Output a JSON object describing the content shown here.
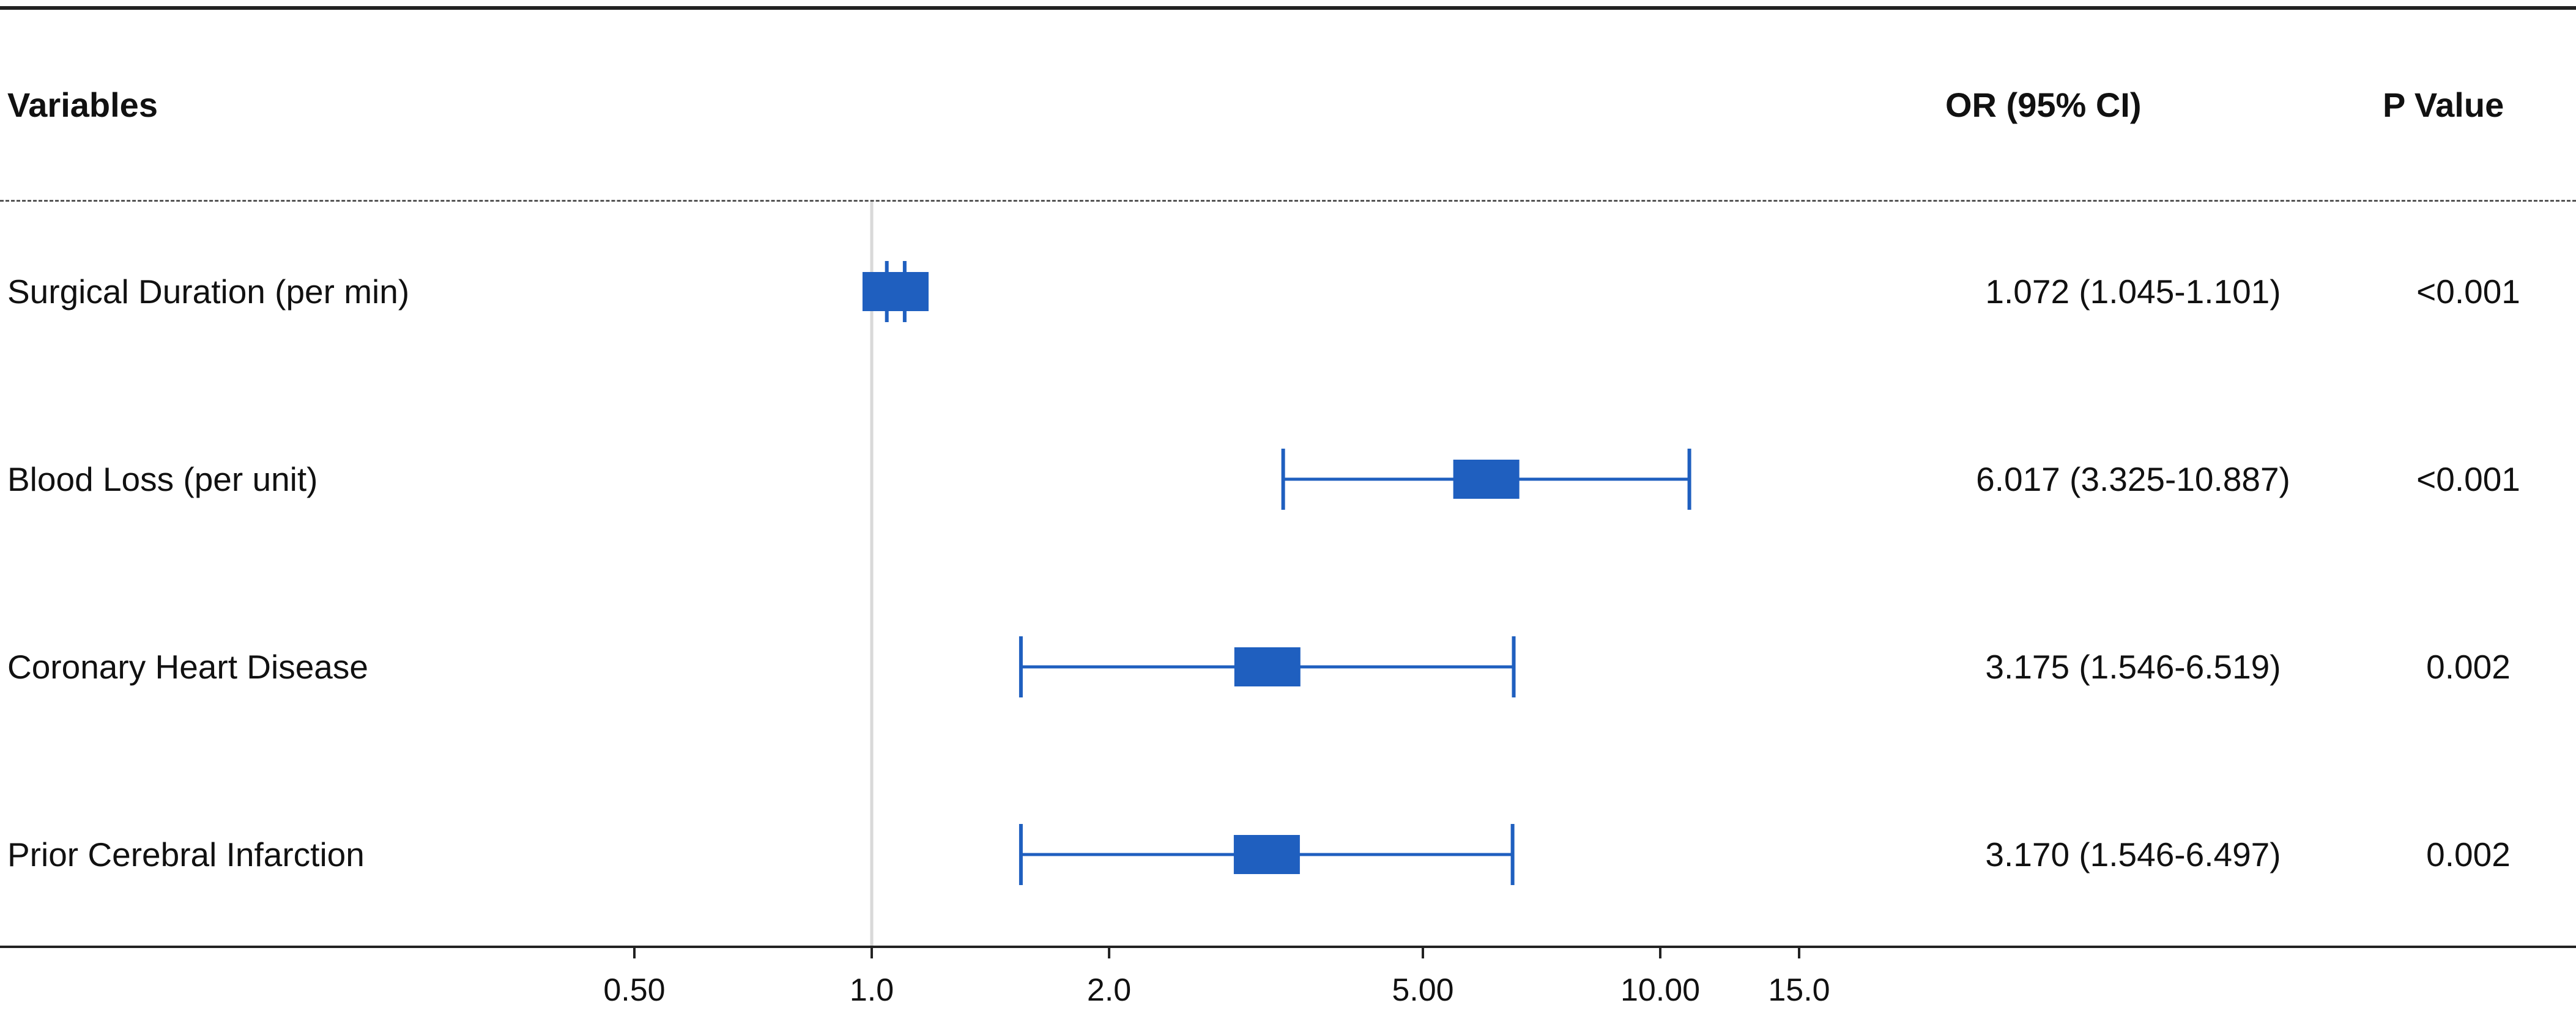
{
  "headers": {
    "variables": "Variables",
    "or_ci": "OR (95% CI)",
    "p_value": "P Value"
  },
  "rows": [
    {
      "label": "Surgical Duration (per min)",
      "ci_text": "1.072 (1.045-1.101)",
      "p": "<0.001"
    },
    {
      "label": "Blood Loss (per unit)",
      "ci_text": "6.017 (3.325-10.887)",
      "p": "<0.001"
    },
    {
      "label": "Coronary Heart Disease",
      "ci_text": "3.175 (1.546-6.519)",
      "p": "0.002"
    },
    {
      "label": "Prior Cerebral Infarction",
      "ci_text": "3.170 (1.546-6.497)",
      "p": "0.002"
    }
  ],
  "colors": {
    "marker": "#1f5fbf",
    "reference_line": "#d9d9d9",
    "rules": "#222222"
  },
  "chart_data": {
    "type": "forest",
    "x_scale": "log",
    "reference_value": 1.0,
    "xlim": [
      0.5,
      15.0
    ],
    "ticks": [
      {
        "value": 0.5,
        "label": "0.50"
      },
      {
        "value": 1.0,
        "label": "1.0"
      },
      {
        "value": 2.0,
        "label": "2.0"
      },
      {
        "value": 5.0,
        "label": "5.00"
      },
      {
        "value": 10.0,
        "label": "10.00"
      },
      {
        "value": 15.0,
        "label": "15.0"
      }
    ],
    "estimates": [
      {
        "or": 1.072,
        "lower": 1.045,
        "upper": 1.101
      },
      {
        "or": 6.017,
        "lower": 3.325,
        "upper": 10.887
      },
      {
        "or": 3.175,
        "lower": 1.546,
        "upper": 6.519
      },
      {
        "or": 3.17,
        "lower": 1.546,
        "upper": 6.497
      }
    ]
  }
}
